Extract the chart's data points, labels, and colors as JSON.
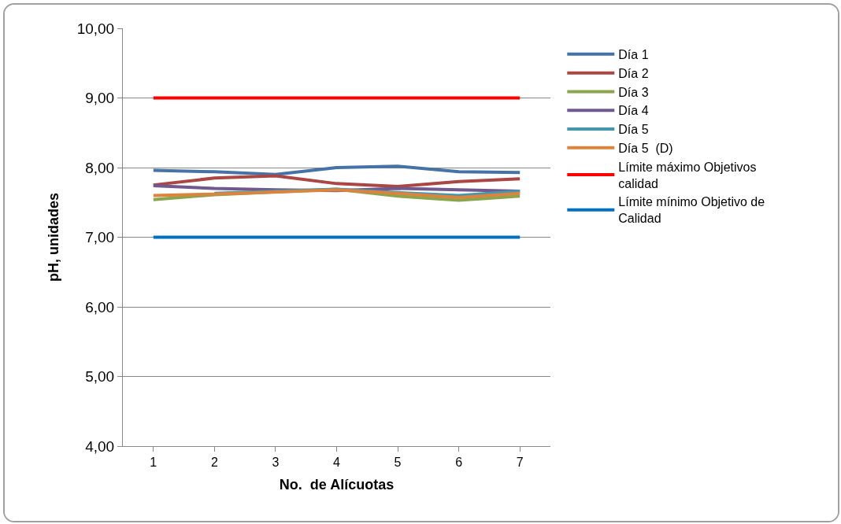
{
  "chart_data": {
    "type": "line",
    "xlabel": "No.  de Alícuotas",
    "ylabel": "pH, unidades",
    "categories": [
      "1",
      "2",
      "3",
      "4",
      "5",
      "6",
      "7"
    ],
    "ylim": [
      4,
      10
    ],
    "yticks": [
      {
        "value": 4,
        "label": "4,00"
      },
      {
        "value": 5,
        "label": "5,00"
      },
      {
        "value": 6,
        "label": "6,00"
      },
      {
        "value": 7,
        "label": "7,00"
      },
      {
        "value": 8,
        "label": "8,00"
      },
      {
        "value": 9,
        "label": "9,00"
      },
      {
        "value": 10,
        "label": "10,00"
      }
    ],
    "grid": "y",
    "legend": "right",
    "marker": "none",
    "line_style": "solid",
    "series": [
      {
        "name": "Día 1",
        "color": "#4572a7",
        "values": [
          7.96,
          7.94,
          7.9,
          8.0,
          8.02,
          7.94,
          7.93
        ]
      },
      {
        "name": "Día 2",
        "color": "#aa4643",
        "values": [
          7.75,
          7.85,
          7.88,
          7.77,
          7.73,
          7.8,
          7.84
        ]
      },
      {
        "name": "Día 3",
        "color": "#89a54e",
        "values": [
          7.54,
          7.61,
          7.65,
          7.69,
          7.59,
          7.53,
          7.59
        ]
      },
      {
        "name": "Día 4",
        "color": "#71588f",
        "values": [
          7.74,
          7.7,
          7.68,
          7.67,
          7.7,
          7.68,
          7.66
        ]
      },
      {
        "name": "Día 5",
        "color": "#4198af",
        "values": [
          null,
          7.63,
          7.66,
          7.69,
          7.64,
          7.6,
          7.66
        ]
      },
      {
        "name": "Día 5  (D)",
        "color": "#db843d",
        "values": [
          7.6,
          7.62,
          7.65,
          7.68,
          7.63,
          7.57,
          7.63
        ]
      },
      {
        "name": "Límite máximo Objetivos calidad",
        "color": "#ff0000",
        "values": [
          9,
          9,
          9,
          9,
          9,
          9,
          9
        ]
      },
      {
        "name": "Límite mínimo Objetivo de Calidad",
        "color": "#0070c0",
        "values": [
          7,
          7,
          7,
          7,
          7,
          7,
          7
        ]
      }
    ]
  }
}
